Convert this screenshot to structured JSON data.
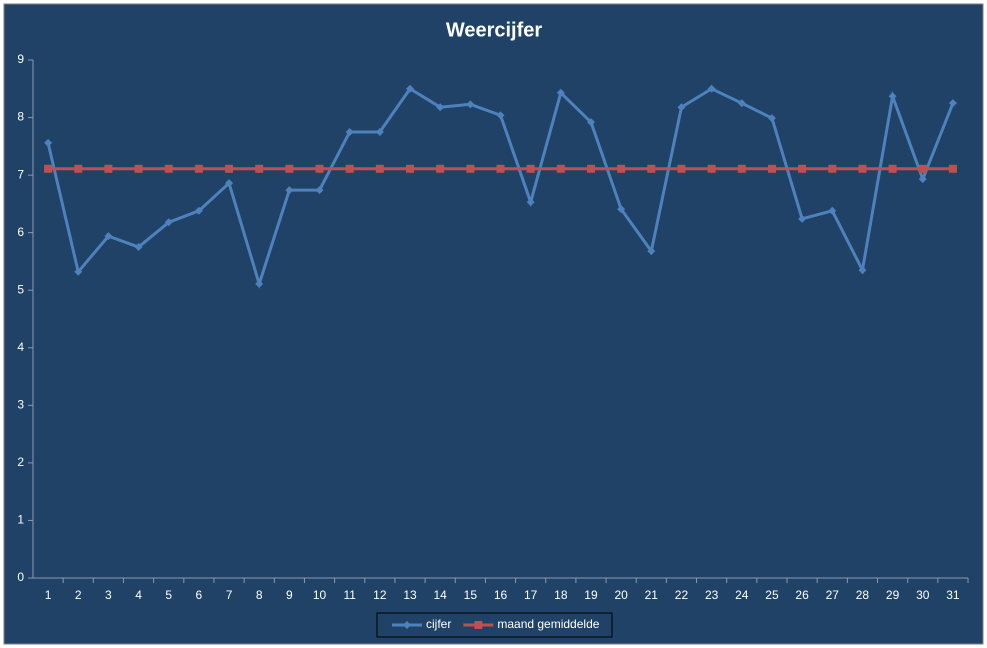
{
  "chart_data": {
    "type": "line",
    "title": "Weercijfer",
    "categories": [
      "1",
      "2",
      "3",
      "4",
      "5",
      "6",
      "7",
      "8",
      "9",
      "10",
      "11",
      "12",
      "13",
      "14",
      "15",
      "16",
      "17",
      "18",
      "19",
      "20",
      "21",
      "22",
      "23",
      "24",
      "25",
      "26",
      "27",
      "28",
      "29",
      "30",
      "31"
    ],
    "series": [
      {
        "name": "cijfer",
        "color": "#4f81bd",
        "marker": "diamond",
        "values": [
          7.56,
          5.32,
          5.94,
          5.75,
          6.18,
          6.38,
          6.86,
          5.11,
          6.74,
          6.74,
          7.75,
          7.75,
          8.5,
          8.18,
          8.23,
          8.04,
          6.53,
          8.43,
          7.92,
          6.41,
          5.68,
          8.18,
          8.5,
          8.25,
          7.99,
          6.24,
          6.38,
          5.35,
          8.37,
          6.93,
          8.25
        ]
      },
      {
        "name": "maand gemiddelde",
        "color": "#c0504d",
        "marker": "square",
        "values": [
          7.11,
          7.11,
          7.11,
          7.11,
          7.11,
          7.11,
          7.11,
          7.11,
          7.11,
          7.11,
          7.11,
          7.11,
          7.11,
          7.11,
          7.11,
          7.11,
          7.11,
          7.11,
          7.11,
          7.11,
          7.11,
          7.11,
          7.11,
          7.11,
          7.11,
          7.11,
          7.11,
          7.11,
          7.11,
          7.11,
          7.11
        ]
      }
    ],
    "ylim": [
      0,
      9
    ],
    "yticks": [
      0,
      1,
      2,
      3,
      4,
      5,
      6,
      7,
      8,
      9
    ],
    "grid": false,
    "legend": "bottom"
  }
}
